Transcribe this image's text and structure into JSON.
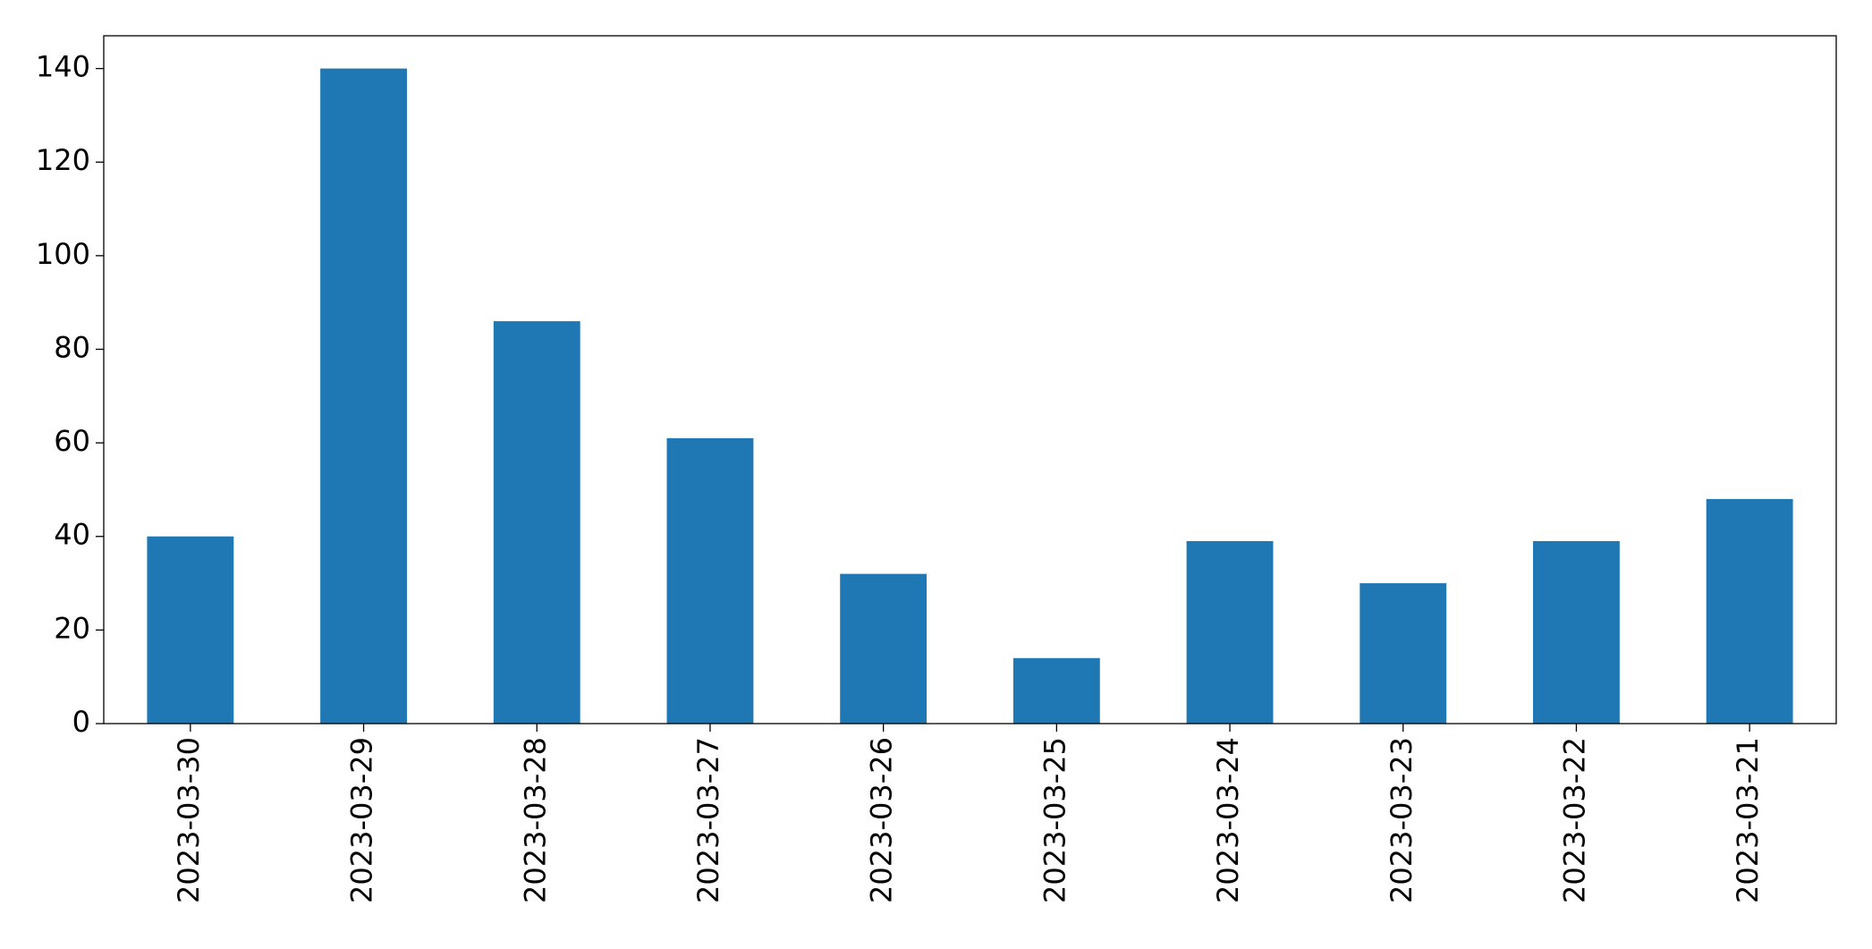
{
  "chart_data": {
    "type": "bar",
    "categories": [
      "2023-03-30",
      "2023-03-29",
      "2023-03-28",
      "2023-03-27",
      "2023-03-26",
      "2023-03-25",
      "2023-03-24",
      "2023-03-23",
      "2023-03-22",
      "2023-03-21"
    ],
    "values": [
      40,
      140,
      86,
      61,
      32,
      14,
      39,
      30,
      39,
      48
    ],
    "color": "#1f77b4",
    "ylim": [
      0,
      147
    ],
    "yticks": [
      0,
      20,
      40,
      60,
      80,
      100,
      120,
      140
    ],
    "grid": false
  }
}
